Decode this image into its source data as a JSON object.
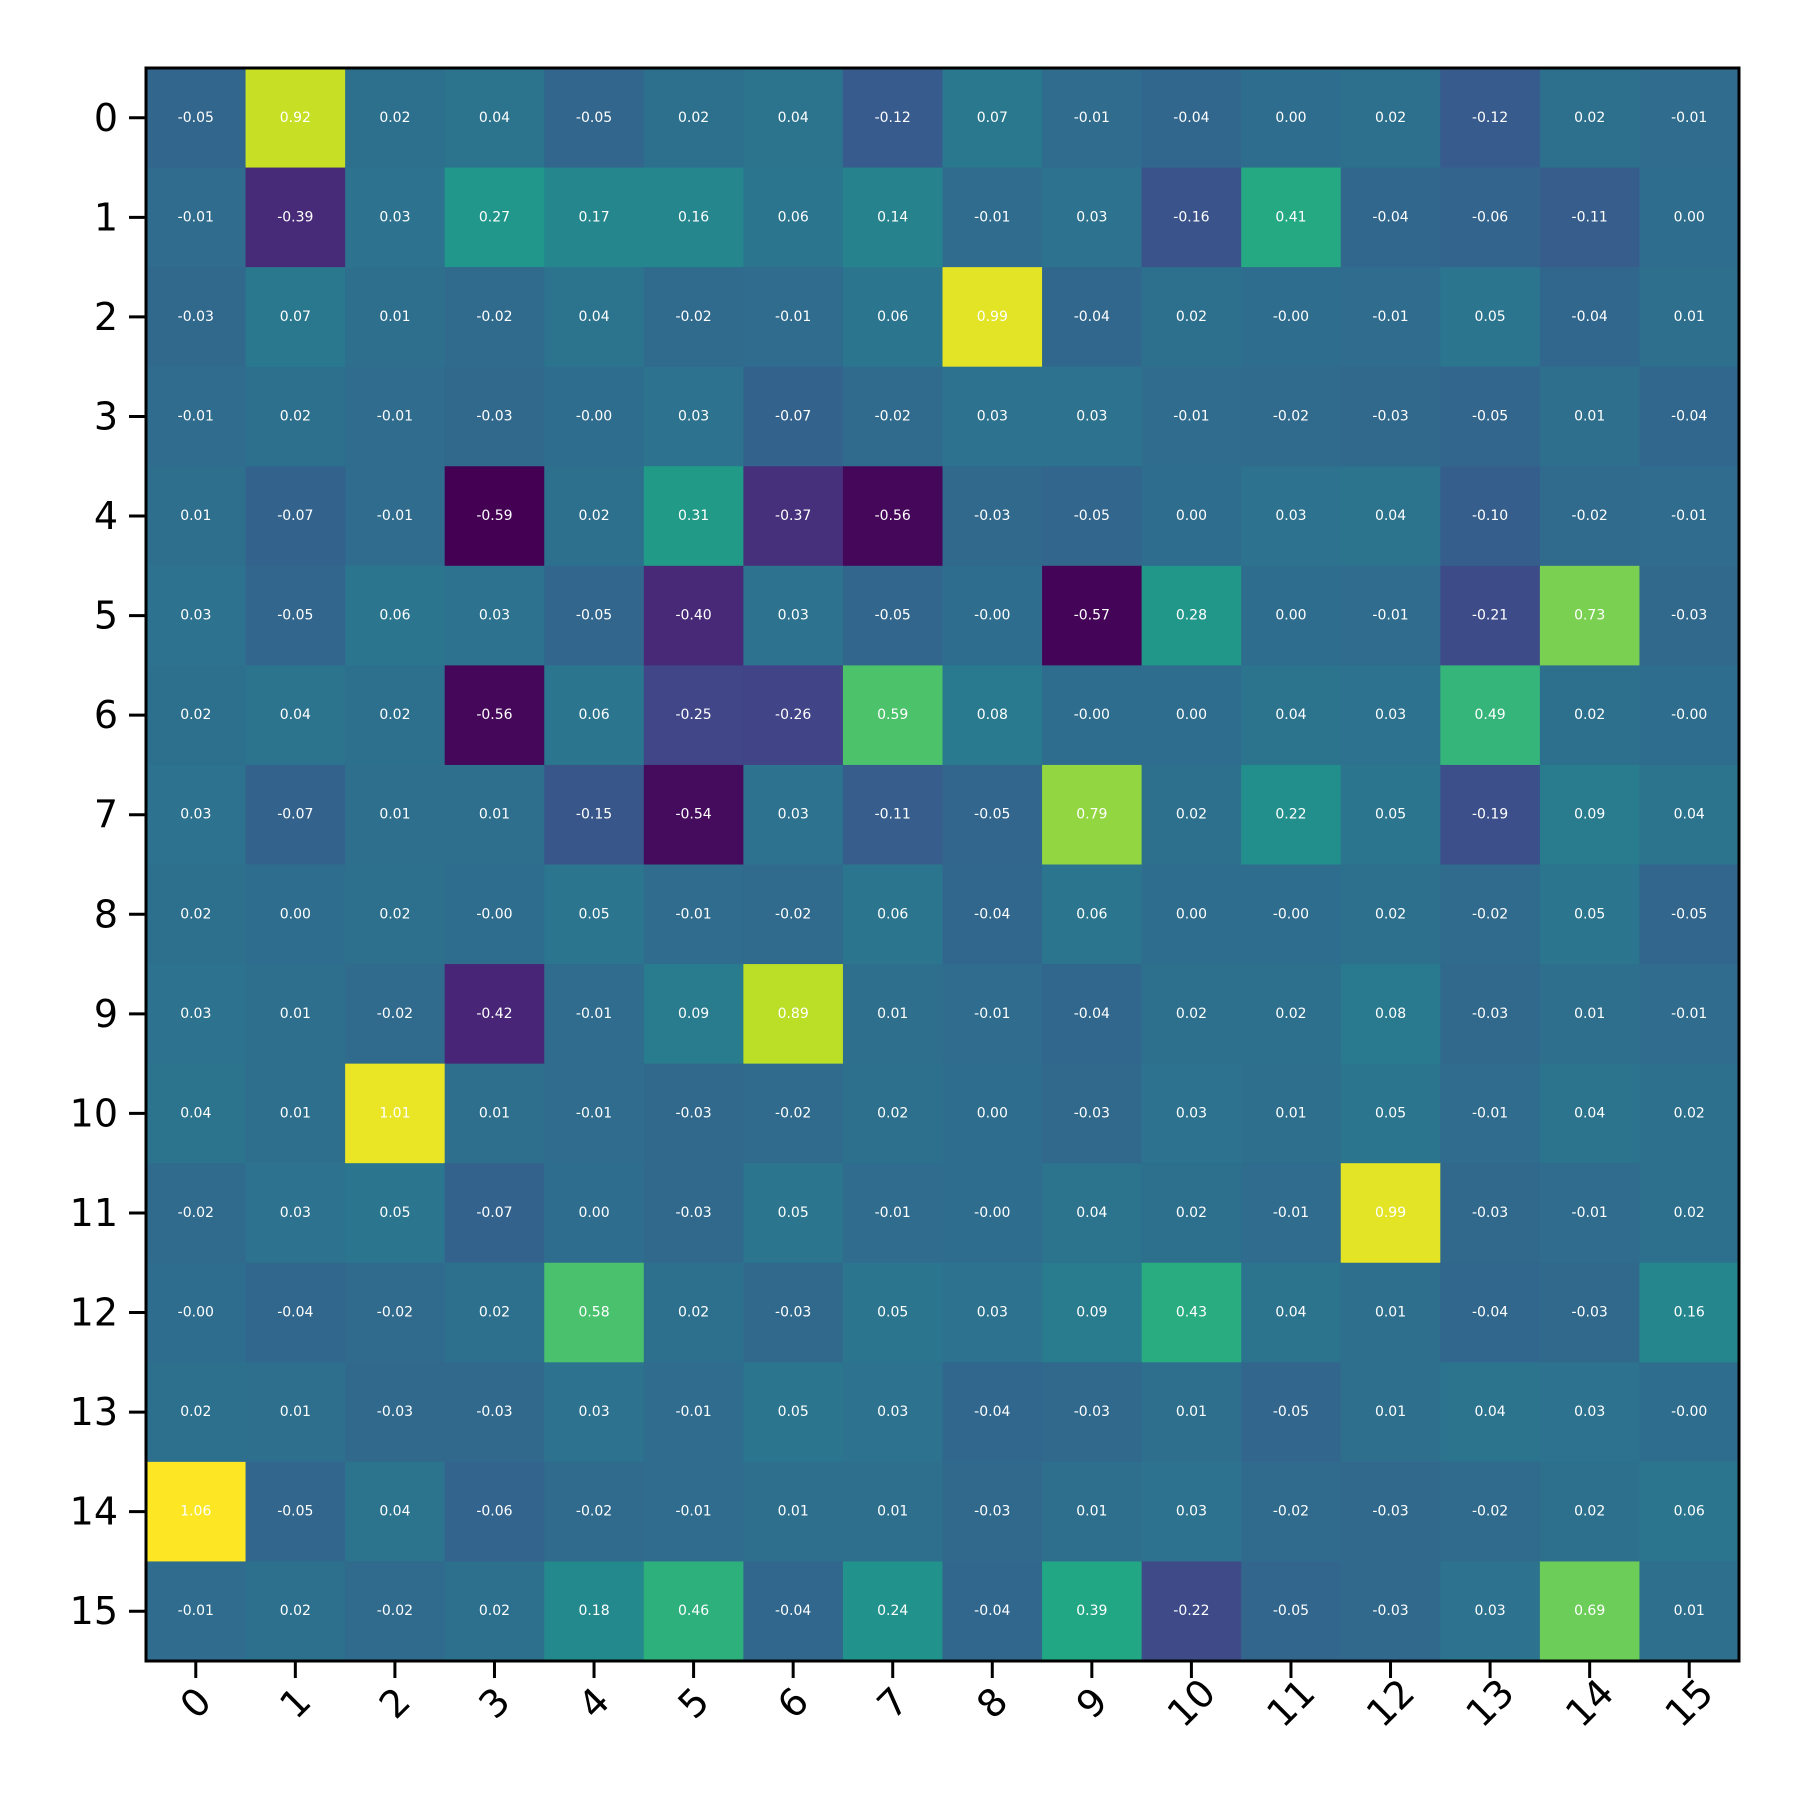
{
  "chart_data": {
    "type": "heatmap",
    "title": "",
    "xlabel": "",
    "ylabel": "",
    "colormap": "viridis",
    "value_range": [
      -0.59,
      1.06
    ],
    "x_categories": [
      "0",
      "1",
      "2",
      "3",
      "4",
      "5",
      "6",
      "7",
      "8",
      "9",
      "10",
      "11",
      "12",
      "13",
      "14",
      "15"
    ],
    "y_categories": [
      "0",
      "1",
      "2",
      "3",
      "4",
      "5",
      "6",
      "7",
      "8",
      "9",
      "10",
      "11",
      "12",
      "13",
      "14",
      "15"
    ],
    "cell_text_color": "#ffffff",
    "grid": false,
    "legend": "none",
    "values": [
      [
        "-0.05",
        "0.92",
        "0.02",
        "0.04",
        "-0.05",
        "0.02",
        "0.04",
        "-0.12",
        "0.07",
        "-0.01",
        "-0.04",
        "0.00",
        "0.02",
        "-0.12",
        "0.02",
        "-0.01"
      ],
      [
        "-0.01",
        "-0.39",
        "0.03",
        "0.27",
        "0.17",
        "0.16",
        "0.06",
        "0.14",
        "-0.01",
        "0.03",
        "-0.16",
        "0.41",
        "-0.04",
        "-0.06",
        "-0.11",
        "0.00"
      ],
      [
        "-0.03",
        "0.07",
        "0.01",
        "-0.02",
        "0.04",
        "-0.02",
        "-0.01",
        "0.06",
        "0.99",
        "-0.04",
        "0.02",
        "-0.00",
        "-0.01",
        "0.05",
        "-0.04",
        "0.01"
      ],
      [
        "-0.01",
        "0.02",
        "-0.01",
        "-0.03",
        "-0.00",
        "0.03",
        "-0.07",
        "-0.02",
        "0.03",
        "0.03",
        "-0.01",
        "-0.02",
        "-0.03",
        "-0.05",
        "0.01",
        "-0.04"
      ],
      [
        "0.01",
        "-0.07",
        "-0.01",
        "-0.59",
        "0.02",
        "0.31",
        "-0.37",
        "-0.56",
        "-0.03",
        "-0.05",
        "0.00",
        "0.03",
        "0.04",
        "-0.10",
        "-0.02",
        "-0.01"
      ],
      [
        "0.03",
        "-0.05",
        "0.06",
        "0.03",
        "-0.05",
        "-0.40",
        "0.03",
        "-0.05",
        "-0.00",
        "-0.57",
        "0.28",
        "0.00",
        "-0.01",
        "-0.21",
        "0.73",
        "-0.03"
      ],
      [
        "0.02",
        "0.04",
        "0.02",
        "-0.56",
        "0.06",
        "-0.25",
        "-0.26",
        "0.59",
        "0.08",
        "-0.00",
        "0.00",
        "0.04",
        "0.03",
        "0.49",
        "0.02",
        "-0.00"
      ],
      [
        "0.03",
        "-0.07",
        "0.01",
        "0.01",
        "-0.15",
        "-0.54",
        "0.03",
        "-0.11",
        "-0.05",
        "0.79",
        "0.02",
        "0.22",
        "0.05",
        "-0.19",
        "0.09",
        "0.04"
      ],
      [
        "0.02",
        "0.00",
        "0.02",
        "-0.00",
        "0.05",
        "-0.01",
        "-0.02",
        "0.06",
        "-0.04",
        "0.06",
        "0.00",
        "-0.00",
        "0.02",
        "-0.02",
        "0.05",
        "-0.05"
      ],
      [
        "0.03",
        "0.01",
        "-0.02",
        "-0.42",
        "-0.01",
        "0.09",
        "0.89",
        "0.01",
        "-0.01",
        "-0.04",
        "0.02",
        "0.02",
        "0.08",
        "-0.03",
        "0.01",
        "-0.01"
      ],
      [
        "0.04",
        "0.01",
        "1.01",
        "0.01",
        "-0.01",
        "-0.03",
        "-0.02",
        "0.02",
        "0.00",
        "-0.03",
        "0.03",
        "0.01",
        "0.05",
        "-0.01",
        "0.04",
        "0.02"
      ],
      [
        "-0.02",
        "0.03",
        "0.05",
        "-0.07",
        "0.00",
        "-0.03",
        "0.05",
        "-0.01",
        "-0.00",
        "0.04",
        "0.02",
        "-0.01",
        "0.99",
        "-0.03",
        "-0.01",
        "0.02"
      ],
      [
        "-0.00",
        "-0.04",
        "-0.02",
        "0.02",
        "0.58",
        "0.02",
        "-0.03",
        "0.05",
        "0.03",
        "0.09",
        "0.43",
        "0.04",
        "0.01",
        "-0.04",
        "-0.03",
        "0.16"
      ],
      [
        "0.02",
        "0.01",
        "-0.03",
        "-0.03",
        "0.03",
        "-0.01",
        "0.05",
        "0.03",
        "-0.04",
        "-0.03",
        "0.01",
        "-0.05",
        "0.01",
        "0.04",
        "0.03",
        "-0.00"
      ],
      [
        "1.06",
        "-0.05",
        "0.04",
        "-0.06",
        "-0.02",
        "-0.01",
        "0.01",
        "0.01",
        "-0.03",
        "0.01",
        "0.03",
        "-0.02",
        "-0.03",
        "-0.02",
        "0.02",
        "0.06"
      ],
      [
        "-0.01",
        "0.02",
        "-0.02",
        "0.02",
        "0.18",
        "0.46",
        "-0.04",
        "0.24",
        "-0.04",
        "0.39",
        "-0.22",
        "-0.05",
        "-0.03",
        "0.03",
        "0.69",
        "0.01"
      ]
    ]
  }
}
